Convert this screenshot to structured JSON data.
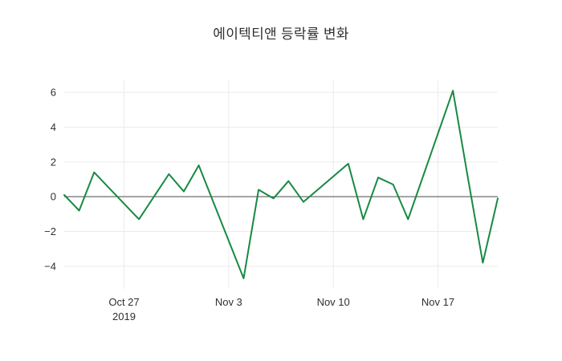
{
  "page": {
    "background": "#ffffff"
  },
  "chart_data": {
    "type": "line",
    "title": "에이텍티앤 등락률 변화",
    "xlabel": "",
    "ylabel": "",
    "grid": true,
    "legend": false,
    "zeroline": true,
    "ylim": [
      -5.3,
      6.7
    ],
    "yticks": [
      -4,
      -2,
      0,
      2,
      4,
      6
    ],
    "xticks": [
      {
        "date": "2019-10-27",
        "label": "Oct 27",
        "sublabel": "2019"
      },
      {
        "date": "2019-11-03",
        "label": "Nov 3"
      },
      {
        "date": "2019-11-10",
        "label": "Nov 10"
      },
      {
        "date": "2019-11-17",
        "label": "Nov 17"
      }
    ],
    "series": [
      {
        "color": "#178a43",
        "points": [
          [
            "2019-10-23",
            0.1
          ],
          [
            "2019-10-24",
            -0.8
          ],
          [
            "2019-10-25",
            1.4
          ],
          [
            "2019-10-28",
            -1.3
          ],
          [
            "2019-10-29",
            0.0
          ],
          [
            "2019-10-30",
            1.3
          ],
          [
            "2019-10-31",
            0.3
          ],
          [
            "2019-11-01",
            1.8
          ],
          [
            "2019-11-04",
            -4.7
          ],
          [
            "2019-11-05",
            0.4
          ],
          [
            "2019-11-06",
            -0.1
          ],
          [
            "2019-11-07",
            0.9
          ],
          [
            "2019-11-08",
            -0.3
          ],
          [
            "2019-11-11",
            1.9
          ],
          [
            "2019-11-12",
            -1.3
          ],
          [
            "2019-11-13",
            1.1
          ],
          [
            "2019-11-14",
            0.7
          ],
          [
            "2019-11-15",
            -1.3
          ],
          [
            "2019-11-18",
            6.1
          ],
          [
            "2019-11-19",
            1.1
          ],
          [
            "2019-11-20",
            -3.8
          ],
          [
            "2019-11-21",
            -0.1
          ]
        ]
      }
    ],
    "colors": {
      "grid": "#ebebeb",
      "zeroline": "#4a4a4a",
      "tick_text": "#303030"
    }
  }
}
